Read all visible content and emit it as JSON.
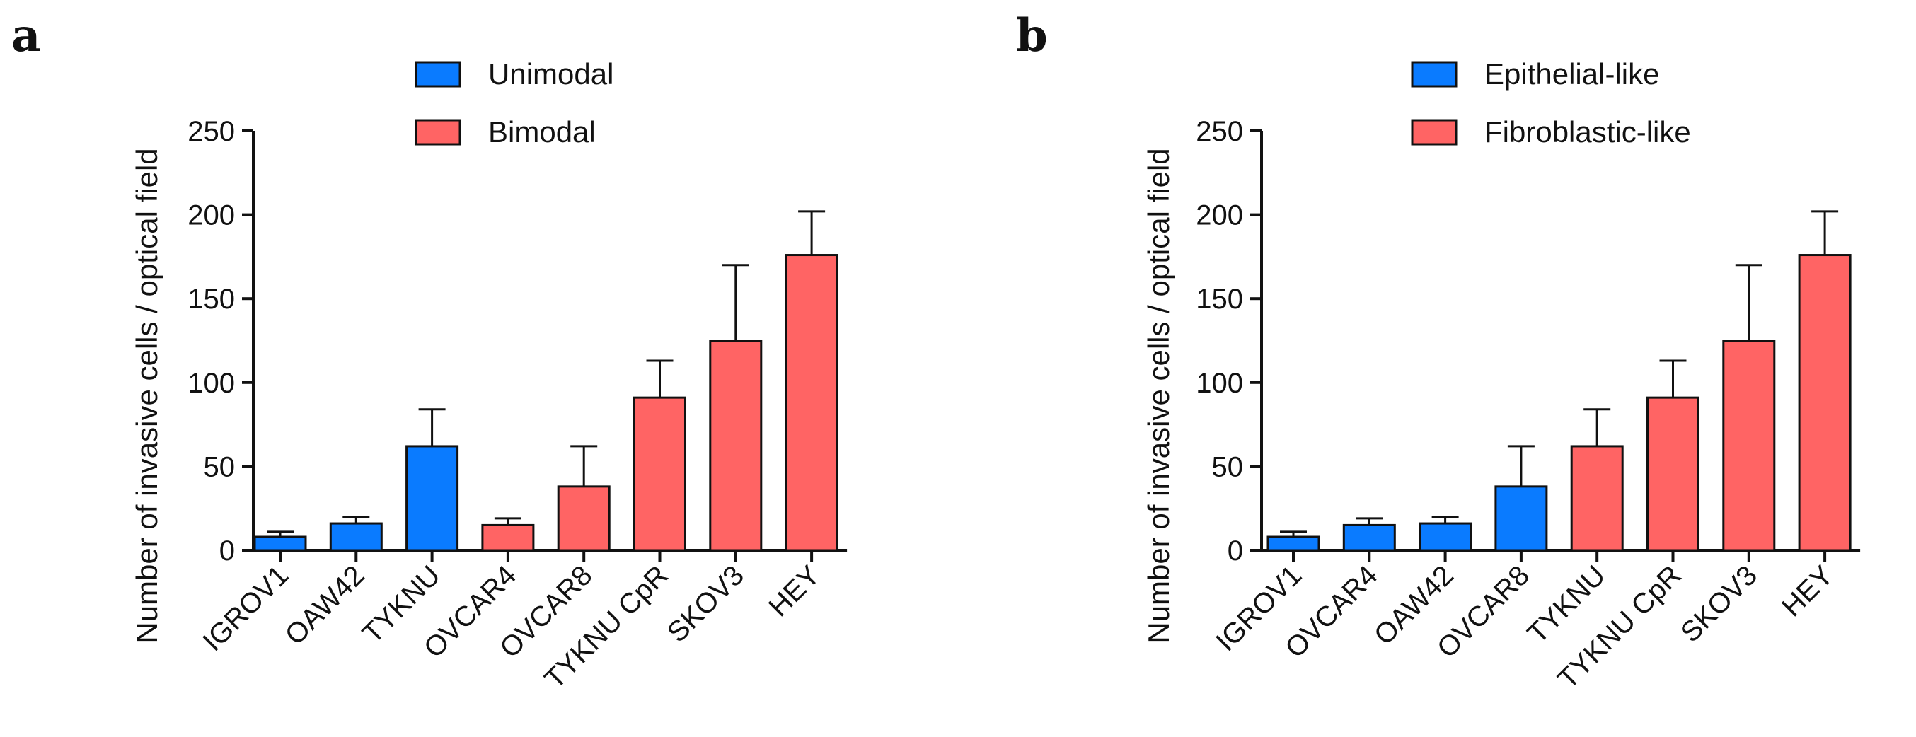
{
  "colors": {
    "blue": "#0a7bff",
    "red": "#ff6464",
    "stroke": "#111111"
  },
  "chart_data": [
    {
      "panel": "a",
      "type": "bar",
      "ylabel": "Number of invasive cells / optical field",
      "ylim": [
        0,
        250
      ],
      "yticks": [
        0,
        50,
        100,
        150,
        200,
        250
      ],
      "categories": [
        "IGROV1",
        "OAW42",
        "TYKNU",
        "OVCAR4",
        "OVCAR8",
        "TYKNU CpR",
        "SKOV3",
        "HEY"
      ],
      "values": [
        8,
        16,
        62,
        15,
        38,
        91,
        125,
        176
      ],
      "errors": [
        3,
        4,
        22,
        4,
        24,
        22,
        45,
        26
      ],
      "groups": [
        0,
        0,
        0,
        1,
        1,
        1,
        1,
        1
      ],
      "legend": [
        {
          "label": "Unimodal",
          "color": "#0a7bff"
        },
        {
          "label": "Bimodal",
          "color": "#ff6464"
        }
      ]
    },
    {
      "panel": "b",
      "type": "bar",
      "ylabel": "Number of invasive cells / optical field",
      "ylim": [
        0,
        250
      ],
      "yticks": [
        0,
        50,
        100,
        150,
        200,
        250
      ],
      "categories": [
        "IGROV1",
        "OVCAR4",
        "OAW42",
        "OVCAR8",
        "TYKNU",
        "TYKNU CpR",
        "SKOV3",
        "HEY"
      ],
      "values": [
        8,
        15,
        16,
        38,
        62,
        91,
        125,
        176
      ],
      "errors": [
        3,
        4,
        4,
        24,
        22,
        22,
        45,
        26
      ],
      "groups": [
        0,
        0,
        0,
        0,
        1,
        1,
        1,
        1
      ],
      "legend": [
        {
          "label": "Epithelial-like",
          "color": "#0a7bff"
        },
        {
          "label": "Fibroblastic-like",
          "color": "#ff6464"
        }
      ]
    }
  ]
}
